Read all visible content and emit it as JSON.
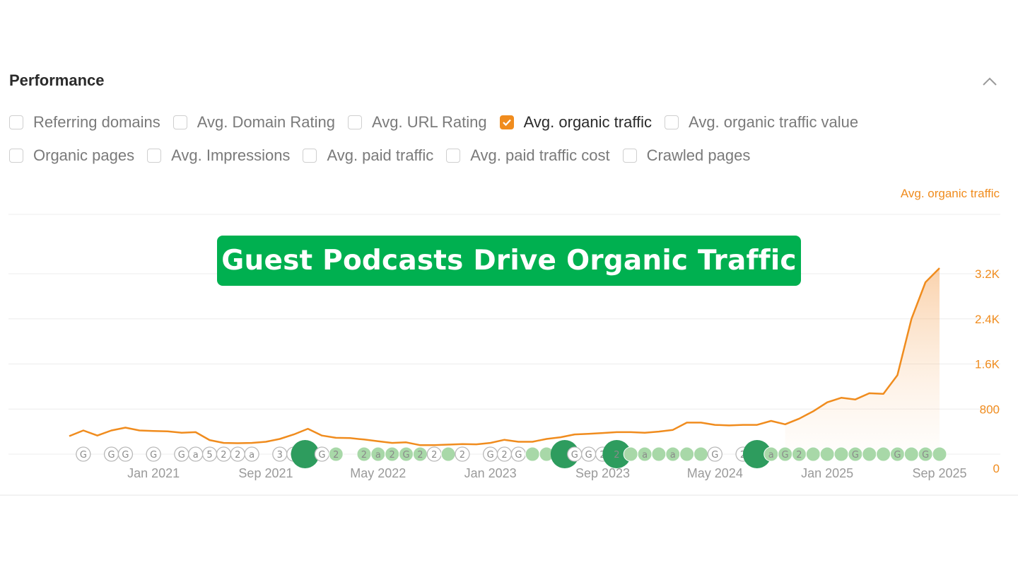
{
  "header": {
    "title": "Performance"
  },
  "metrics_row1": [
    {
      "label": "Referring domains",
      "checked": false
    },
    {
      "label": "Avg. Domain Rating",
      "checked": false
    },
    {
      "label": "Avg. URL Rating",
      "checked": false
    },
    {
      "label": "Avg. organic traffic",
      "checked": true
    },
    {
      "label": "Avg. organic traffic value",
      "checked": false
    }
  ],
  "metrics_row2": [
    {
      "label": "Organic pages",
      "checked": false
    },
    {
      "label": "Avg. Impressions",
      "checked": false
    },
    {
      "label": "Avg. paid traffic",
      "checked": false
    },
    {
      "label": "Avg. paid traffic cost",
      "checked": false
    },
    {
      "label": "Crawled pages",
      "checked": false
    }
  ],
  "banner": {
    "text": "Guest Podcasts Drive Organic Traffic"
  },
  "colors": {
    "accent": "#f08c1e",
    "banner": "#00b050",
    "marker_dark": "#2e9c5e",
    "marker_light": "#a8d8a8"
  },
  "chart_data": {
    "type": "line",
    "series_label": "Avg. organic traffic",
    "y_ticks": [
      "0",
      "800",
      "1.6K",
      "2.4K",
      "3.2K"
    ],
    "ylim": [
      0,
      3200
    ],
    "x_ticks": [
      {
        "label": "Jan 2021",
        "x": 6
      },
      {
        "label": "Sep 2021",
        "x": 14
      },
      {
        "label": "May 2022",
        "x": 22
      },
      {
        "label": "Jan 2023",
        "x": 30
      },
      {
        "label": "Sep 2023",
        "x": 38
      },
      {
        "label": "May 2024",
        "x": 46
      },
      {
        "label": "Jan 2025",
        "x": 54
      },
      {
        "label": "Sep 2025",
        "x": 62
      }
    ],
    "xlim": [
      0,
      62
    ],
    "series": [
      {
        "values": [
          320,
          420,
          330,
          420,
          470,
          420,
          410,
          405,
          380,
          390,
          250,
          200,
          195,
          200,
          220,
          270,
          350,
          450,
          330,
          290,
          285,
          260,
          230,
          200,
          210,
          160,
          160,
          170,
          180,
          175,
          200,
          255,
          220,
          220,
          270,
          300,
          350,
          360,
          375,
          390,
          390,
          380,
          400,
          430,
          560,
          560,
          520,
          510,
          520,
          520,
          590,
          530,
          630,
          760,
          920,
          1000,
          970,
          1080,
          1070,
          1400,
          2400,
          3050,
          3300
        ]
      }
    ],
    "grid": true,
    "event_markers": [
      {
        "x": 1,
        "type": "small",
        "label": "G"
      },
      {
        "x": 3,
        "type": "small",
        "label": "G"
      },
      {
        "x": 4,
        "type": "small",
        "label": "G"
      },
      {
        "x": 6,
        "type": "small",
        "label": "G"
      },
      {
        "x": 8,
        "type": "small",
        "label": "G"
      },
      {
        "x": 9,
        "type": "small",
        "label": "a"
      },
      {
        "x": 10,
        "type": "small",
        "label": "5"
      },
      {
        "x": 11,
        "type": "small",
        "label": "2"
      },
      {
        "x": 12,
        "type": "small",
        "label": "2"
      },
      {
        "x": 13,
        "type": "small",
        "label": "a"
      },
      {
        "x": 15,
        "type": "small",
        "label": "3"
      },
      {
        "x": 16,
        "type": "small",
        "label": "G"
      },
      {
        "x": 16.8,
        "type": "big",
        "label": ""
      },
      {
        "x": 18,
        "type": "small",
        "label": "G"
      },
      {
        "x": 19,
        "type": "light",
        "label": "2"
      },
      {
        "x": 21,
        "type": "light",
        "label": "2"
      },
      {
        "x": 22,
        "type": "light",
        "label": "a"
      },
      {
        "x": 23,
        "type": "light",
        "label": "2"
      },
      {
        "x": 24,
        "type": "light",
        "label": "G"
      },
      {
        "x": 25,
        "type": "light",
        "label": "2"
      },
      {
        "x": 26,
        "type": "small",
        "label": "2"
      },
      {
        "x": 27,
        "type": "light",
        "label": ""
      },
      {
        "x": 28,
        "type": "small",
        "label": "2"
      },
      {
        "x": 30,
        "type": "small",
        "label": "G"
      },
      {
        "x": 31,
        "type": "small",
        "label": "2"
      },
      {
        "x": 32,
        "type": "small",
        "label": "G"
      },
      {
        "x": 33,
        "type": "light",
        "label": ""
      },
      {
        "x": 34,
        "type": "light",
        "label": ""
      },
      {
        "x": 35,
        "type": "light",
        "label": "G"
      },
      {
        "x": 35.3,
        "type": "big",
        "label": ""
      },
      {
        "x": 36,
        "type": "small",
        "label": "G"
      },
      {
        "x": 37,
        "type": "small",
        "label": "G"
      },
      {
        "x": 38,
        "type": "small",
        "label": "2"
      },
      {
        "x": 39,
        "type": "big",
        "label": "2"
      },
      {
        "x": 40,
        "type": "light",
        "label": ""
      },
      {
        "x": 41,
        "type": "light",
        "label": "a"
      },
      {
        "x": 42,
        "type": "light",
        "label": ""
      },
      {
        "x": 43,
        "type": "light",
        "label": "a"
      },
      {
        "x": 44,
        "type": "light",
        "label": ""
      },
      {
        "x": 45,
        "type": "light",
        "label": ""
      },
      {
        "x": 46,
        "type": "small",
        "label": "G"
      },
      {
        "x": 48,
        "type": "small",
        "label": "2"
      },
      {
        "x": 49,
        "type": "big",
        "label": ""
      },
      {
        "x": 50,
        "type": "light",
        "label": "a"
      },
      {
        "x": 51,
        "type": "light",
        "label": "G"
      },
      {
        "x": 52,
        "type": "light",
        "label": "2"
      },
      {
        "x": 53,
        "type": "light",
        "label": ""
      },
      {
        "x": 54,
        "type": "light",
        "label": ""
      },
      {
        "x": 55,
        "type": "light",
        "label": ""
      },
      {
        "x": 56,
        "type": "light",
        "label": "G"
      },
      {
        "x": 57,
        "type": "light",
        "label": ""
      },
      {
        "x": 58,
        "type": "light",
        "label": ""
      },
      {
        "x": 59,
        "type": "light",
        "label": "G"
      },
      {
        "x": 60,
        "type": "light",
        "label": ""
      },
      {
        "x": 61,
        "type": "light",
        "label": "G"
      },
      {
        "x": 62,
        "type": "light",
        "label": ""
      }
    ]
  }
}
